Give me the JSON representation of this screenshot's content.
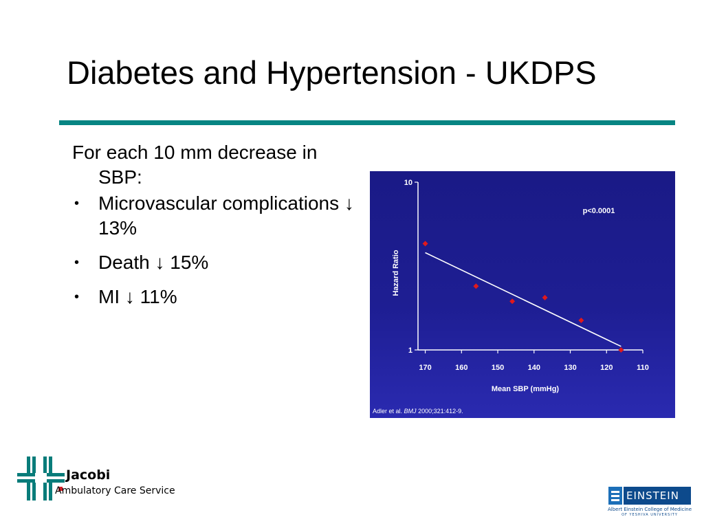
{
  "slide": {
    "title": "Diabetes and Hypertension - UKDPS",
    "rule_color": "#078583"
  },
  "content": {
    "intro": "For each 10 mm decrease in SBP:",
    "bullets": [
      {
        "bullet": "•",
        "text": "Microvascular complications ↓ 13%"
      },
      {
        "bullet": "•",
        "text": "Death ↓ 15%"
      },
      {
        "bullet": "•",
        "text": "MI ↓ 11%"
      }
    ]
  },
  "chart_data": {
    "type": "scatter",
    "xlabel": "Mean SBP (mmHg)",
    "ylabel": "Hazard Ratio",
    "x_ticks": [
      170,
      160,
      150,
      140,
      130,
      120,
      110
    ],
    "y_ticks": [
      1,
      10
    ],
    "xlim": [
      172,
      110
    ],
    "ylim": [
      1,
      10
    ],
    "y_scale": "log",
    "x_reversed": true,
    "annotation": "p<0.0001",
    "points": [
      {
        "x": 170,
        "y": 4.3
      },
      {
        "x": 156,
        "y": 2.4
      },
      {
        "x": 146,
        "y": 1.95
      },
      {
        "x": 137,
        "y": 2.05
      },
      {
        "x": 127,
        "y": 1.5
      },
      {
        "x": 116,
        "y": 1.0
      }
    ],
    "trend_line": [
      {
        "x": 170,
        "y": 3.8
      },
      {
        "x": 116,
        "y": 1.05
      }
    ],
    "citation": {
      "authors": "Adler et al.",
      "journal": "BMJ",
      "ref": "2000;321:412-9."
    },
    "colors": {
      "background": "#1e1e93",
      "axis": "#ffffff",
      "points": "#e0191c",
      "line": "#ffffff"
    }
  },
  "footer": {
    "left_logo": {
      "name": "Jacobi",
      "sub": "Ambulatory Care Service"
    },
    "right_logo": {
      "name": "EINSTEIN",
      "sub1": "Albert Einstein College of Medicine",
      "sub2": "OF YESHIVA UNIVERSITY"
    }
  }
}
